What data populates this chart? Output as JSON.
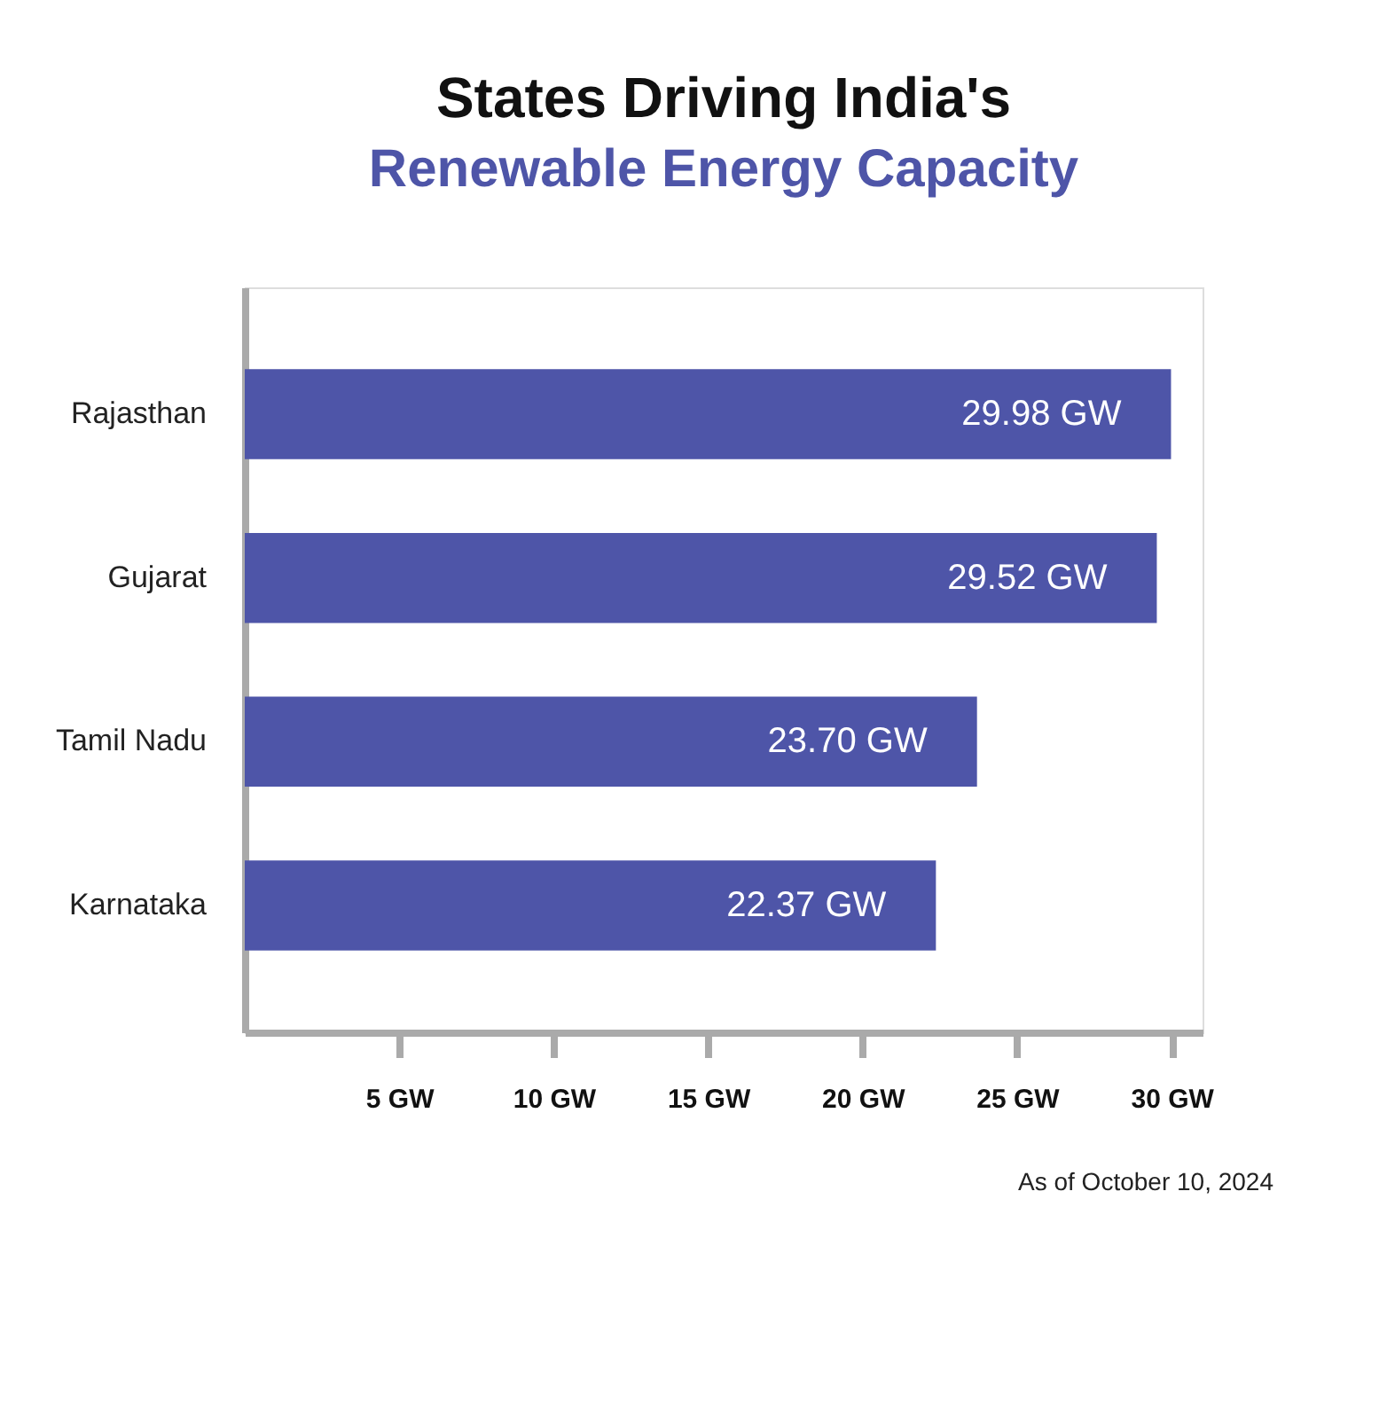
{
  "chart_data": {
    "type": "bar",
    "orientation": "horizontal",
    "title": "States Driving India's",
    "subtitle": "Renewable Energy Capacity",
    "categories": [
      "Rajasthan",
      "Gujarat",
      "Tamil Nadu",
      "Karnataka"
    ],
    "values": [
      29.98,
      29.52,
      23.7,
      22.37
    ],
    "value_labels": [
      "29.98 GW",
      "29.52 GW",
      "23.70 GW",
      "22.37 GW"
    ],
    "color": "#4e55a8",
    "xlim": [
      0,
      31
    ],
    "xticks": [
      {
        "value": 5,
        "label": "5 GW"
      },
      {
        "value": 10,
        "label": "10 GW"
      },
      {
        "value": 15,
        "label": "15 GW"
      },
      {
        "value": 20,
        "label": "20 GW"
      },
      {
        "value": 25,
        "label": "25 GW"
      },
      {
        "value": 30,
        "label": "30 GW"
      }
    ],
    "grid": false,
    "annotations": [
      "As of October 10, 2024"
    ]
  }
}
